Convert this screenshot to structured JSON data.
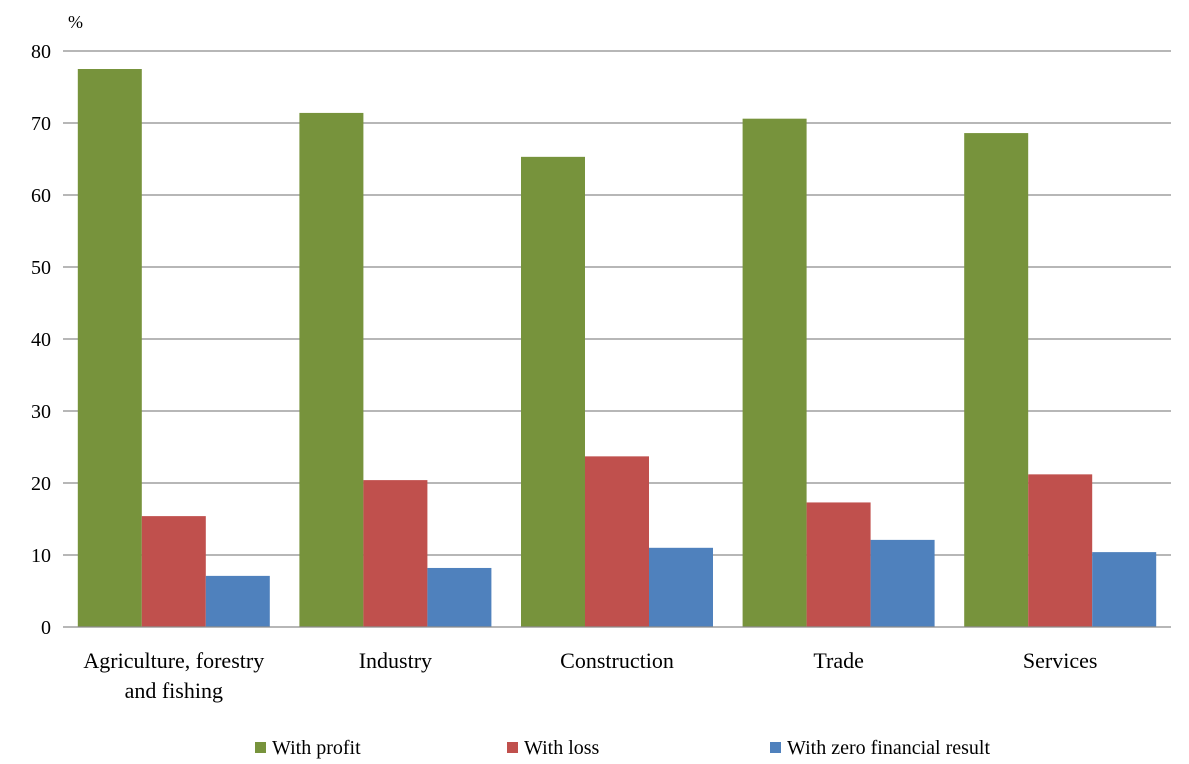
{
  "chart_data": {
    "type": "bar",
    "title": "",
    "xlabel": "",
    "ylabel": "%",
    "ylim": [
      0,
      80
    ],
    "yticks": [
      0,
      10,
      20,
      30,
      40,
      50,
      60,
      70,
      80
    ],
    "grid": true,
    "legend_position": "bottom",
    "categories": [
      [
        "Agriculture, forestry",
        "and fishing"
      ],
      [
        "Industry"
      ],
      [
        "Construction"
      ],
      [
        "Trade"
      ],
      [
        "Services"
      ]
    ],
    "series": [
      {
        "name": "With profit",
        "color": "#77933c",
        "values": [
          77.5,
          71.4,
          65.3,
          70.6,
          68.6
        ]
      },
      {
        "name": "With loss",
        "color": "#c0504d",
        "values": [
          15.4,
          20.4,
          23.7,
          17.3,
          21.2
        ]
      },
      {
        "name": "With zero financial result",
        "color": "#4f81bd",
        "values": [
          7.1,
          8.2,
          11.0,
          12.1,
          10.4
        ]
      }
    ]
  }
}
